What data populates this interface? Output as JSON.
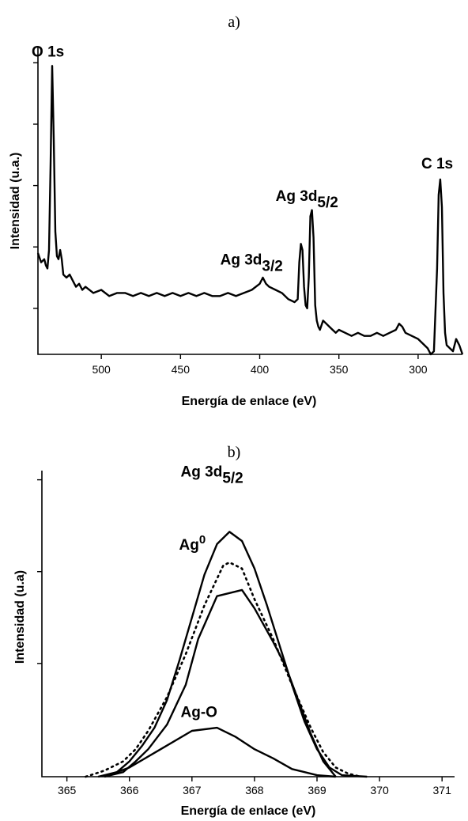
{
  "chart_data": [
    {
      "panel_label": "a)",
      "type": "line",
      "xlabel": "Energía de enlace (eV)",
      "ylabel": "Intensidad (u.a.)",
      "xlim": [
        540,
        272
      ],
      "x_reversed": true,
      "ylim": [
        0,
        100
      ],
      "x_ticks": [
        500,
        450,
        400,
        350,
        300
      ],
      "y_ticks_unlabeled": [
        15,
        35,
        55,
        75,
        95
      ],
      "annotations": [
        {
          "text": "O 1s",
          "x": 531,
          "y": 96
        },
        {
          "text": "Ag 3d",
          "sub": "3/2",
          "x": 374,
          "y": 38
        },
        {
          "text": "Ag 3d",
          "sub": "5/2",
          "x": 368,
          "y": 48
        },
        {
          "text": "C 1s",
          "x": 285,
          "y": 58
        }
      ],
      "series": [
        {
          "points": [
            [
              540,
              33
            ],
            [
              538,
              30
            ],
            [
              536,
              31
            ],
            [
              535,
              29
            ],
            [
              534,
              28
            ],
            [
              533,
              34
            ],
            [
              532,
              62
            ],
            [
              531,
              94
            ],
            [
              530,
              70
            ],
            [
              529,
              40
            ],
            [
              528,
              32
            ],
            [
              527,
              31
            ],
            [
              526,
              34
            ],
            [
              525,
              31
            ],
            [
              524,
              26
            ],
            [
              522,
              25
            ],
            [
              520,
              26
            ],
            [
              518,
              24
            ],
            [
              516,
              22
            ],
            [
              514,
              23
            ],
            [
              512,
              21
            ],
            [
              510,
              22
            ],
            [
              505,
              20
            ],
            [
              500,
              21
            ],
            [
              495,
              19
            ],
            [
              490,
              20
            ],
            [
              485,
              20
            ],
            [
              480,
              19
            ],
            [
              475,
              20
            ],
            [
              470,
              19
            ],
            [
              465,
              20
            ],
            [
              460,
              19
            ],
            [
              455,
              20
            ],
            [
              450,
              19
            ],
            [
              445,
              20
            ],
            [
              440,
              19
            ],
            [
              435,
              20
            ],
            [
              430,
              19
            ],
            [
              425,
              19
            ],
            [
              420,
              20
            ],
            [
              415,
              19
            ],
            [
              410,
              20
            ],
            [
              405,
              21
            ],
            [
              400,
              23
            ],
            [
              398,
              25
            ],
            [
              396,
              23
            ],
            [
              394,
              22
            ],
            [
              390,
              21
            ],
            [
              386,
              20
            ],
            [
              382,
              18
            ],
            [
              378,
              17
            ],
            [
              376,
              18
            ],
            [
              375,
              30
            ],
            [
              374,
              36
            ],
            [
              373,
              34
            ],
            [
              372,
              22
            ],
            [
              371,
              16
            ],
            [
              370,
              15
            ],
            [
              369,
              25
            ],
            [
              368,
              45
            ],
            [
              367,
              47
            ],
            [
              366,
              38
            ],
            [
              365,
              16
            ],
            [
              364,
              11
            ],
            [
              363,
              9
            ],
            [
              362,
              8
            ],
            [
              360,
              11
            ],
            [
              358,
              10
            ],
            [
              356,
              9
            ],
            [
              354,
              8
            ],
            [
              352,
              7
            ],
            [
              350,
              8
            ],
            [
              346,
              7
            ],
            [
              342,
              6
            ],
            [
              338,
              7
            ],
            [
              334,
              6
            ],
            [
              330,
              6
            ],
            [
              326,
              7
            ],
            [
              322,
              6
            ],
            [
              318,
              7
            ],
            [
              314,
              8
            ],
            [
              312,
              10
            ],
            [
              310,
              9
            ],
            [
              308,
              7
            ],
            [
              304,
              6
            ],
            [
              300,
              5
            ],
            [
              296,
              3
            ],
            [
              294,
              2
            ],
            [
              292,
              0
            ],
            [
              290,
              1
            ],
            [
              288,
              28
            ],
            [
              287,
              52
            ],
            [
              286,
              57
            ],
            [
              285,
              48
            ],
            [
              284,
              20
            ],
            [
              283,
              7
            ],
            [
              282,
              3
            ],
            [
              280,
              2
            ],
            [
              278,
              1
            ],
            [
              276,
              5
            ],
            [
              274,
              3
            ],
            [
              272,
              0
            ]
          ]
        }
      ]
    },
    {
      "panel_label": "b)",
      "type": "line",
      "xlabel": "Energía de enlace (eV)",
      "ylabel": "Intensidad (u.a)",
      "xlim": [
        364.6,
        371.2
      ],
      "ylim": [
        0,
        100
      ],
      "x_ticks": [
        365,
        366,
        367,
        368,
        369,
        370,
        371
      ],
      "y_ticks_unlabeled": [
        37,
        67,
        97
      ],
      "annotations": [
        {
          "text": "Ag 3d",
          "sub": "5/2",
          "x": 367.3,
          "y": 97
        },
        {
          "text": "Ag",
          "sup": "0",
          "x": 367.3,
          "y": 71
        },
        {
          "text": "Ag-O",
          "x": 367.3,
          "y": 18
        }
      ],
      "series": [
        {
          "style": "solid",
          "points": [
            [
              365.5,
              0
            ],
            [
              365.8,
              1.5
            ],
            [
              366.0,
              5
            ],
            [
              366.2,
              10
            ],
            [
              366.4,
              16
            ],
            [
              366.6,
              25
            ],
            [
              366.8,
              38
            ],
            [
              367.0,
              52
            ],
            [
              367.2,
              66
            ],
            [
              367.4,
              76
            ],
            [
              367.6,
              80
            ],
            [
              367.8,
              77
            ],
            [
              368.0,
              68
            ],
            [
              368.2,
              56
            ],
            [
              368.4,
              43
            ],
            [
              368.6,
              30
            ],
            [
              368.8,
              18
            ],
            [
              369.0,
              9
            ],
            [
              369.2,
              3
            ],
            [
              369.4,
              0.5
            ],
            [
              369.8,
              0
            ]
          ]
        },
        {
          "style": "solid",
          "points": [
            [
              365.6,
              0
            ],
            [
              365.9,
              1.5
            ],
            [
              366.1,
              5
            ],
            [
              366.3,
              9
            ],
            [
              366.6,
              17
            ],
            [
              366.9,
              30
            ],
            [
              367.1,
              45
            ],
            [
              367.4,
              59
            ],
            [
              367.8,
              61
            ],
            [
              368.0,
              55
            ],
            [
              368.3,
              44
            ],
            [
              368.5,
              36
            ],
            [
              368.7,
              25
            ],
            [
              368.9,
              14
            ],
            [
              369.1,
              5
            ],
            [
              369.3,
              0
            ]
          ]
        },
        {
          "style": "solid",
          "points": [
            [
              365.6,
              0
            ],
            [
              366.0,
              3
            ],
            [
              366.5,
              9
            ],
            [
              367.0,
              15
            ],
            [
              367.4,
              16
            ],
            [
              367.7,
              13
            ],
            [
              368.0,
              9
            ],
            [
              368.3,
              6
            ],
            [
              368.6,
              2.5
            ],
            [
              369.0,
              0.5
            ],
            [
              369.3,
              0
            ]
          ]
        },
        {
          "style": "dotted",
          "points": [
            [
              365.3,
              0
            ],
            [
              365.6,
              2
            ],
            [
              365.9,
              5
            ],
            [
              366.1,
              9
            ],
            [
              366.3,
              15
            ],
            [
              366.6,
              26
            ],
            [
              366.9,
              40
            ],
            [
              367.2,
              56
            ],
            [
              367.5,
              69
            ],
            [
              367.6,
              70
            ],
            [
              367.8,
              68
            ],
            [
              368.0,
              58
            ],
            [
              368.3,
              45
            ],
            [
              368.6,
              30
            ],
            [
              368.9,
              16
            ],
            [
              369.1,
              8
            ],
            [
              369.3,
              3
            ],
            [
              369.5,
              1
            ],
            [
              369.7,
              0
            ]
          ]
        }
      ]
    }
  ]
}
